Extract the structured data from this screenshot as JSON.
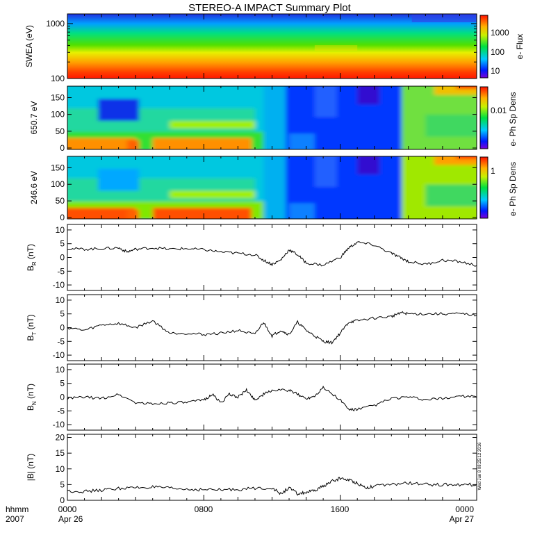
{
  "title": "STEREO-A IMPACT Summary Plot",
  "timestamp": "Wed Jun  8 08:25:12 2016",
  "xaxis": {
    "tick_labels": [
      "0000",
      "0800",
      "1600",
      "0000"
    ],
    "date_labels": [
      "Apr 26",
      "",
      "",
      "Apr 27"
    ],
    "corner_top": "hhmm",
    "corner_bottom": "2007"
  },
  "chart_data": [
    {
      "type": "heatmap",
      "ylabel": "SWEA (eV)",
      "ylim": [
        100,
        1500
      ],
      "yscale": "log",
      "ytick_labels": [
        "1000",
        "100"
      ],
      "colorbar_label": "e- Flux",
      "colorbar_ticks": [
        "1000",
        "100",
        "10"
      ],
      "xlim_hours": [
        0,
        24
      ]
    },
    {
      "type": "heatmap",
      "ylabel": "650.7 eV",
      "ylim": [
        0,
        180
      ],
      "ytick_labels": [
        "0",
        "50",
        "100",
        "150"
      ],
      "colorbar_label": "e- Ph Sp Dens",
      "colorbar_ticks": [
        "0.01"
      ]
    },
    {
      "type": "heatmap",
      "ylabel": "246.6 eV",
      "ylim": [
        0,
        180
      ],
      "ytick_labels": [
        "0",
        "50",
        "100",
        "150"
      ],
      "colorbar_label": "e- Ph Sp Dens",
      "colorbar_ticks": [
        "1"
      ]
    },
    {
      "type": "line",
      "ylabel_main": "B",
      "ylabel_sub": "R",
      "ylabel_unit": " (nT)",
      "ylim": [
        -12,
        12
      ],
      "ytick_labels": [
        "-10",
        "-5",
        "0",
        "5",
        "10"
      ],
      "x_hours": [
        0,
        1,
        2,
        3,
        3.5,
        4,
        5,
        6,
        7,
        8,
        9,
        10,
        11,
        11.5,
        12,
        12.5,
        13,
        13.5,
        14,
        15,
        16,
        16.5,
        17,
        18,
        19,
        19.5,
        20,
        21,
        22,
        23,
        24
      ],
      "values": [
        3.2,
        3,
        3.2,
        3.5,
        2,
        3,
        3.5,
        3,
        3.2,
        2.8,
        2,
        1.5,
        1,
        -1,
        -2.5,
        -1,
        2.8,
        1,
        -2,
        -2.8,
        0,
        3.5,
        5.5,
        4.5,
        1.5,
        0,
        -1.5,
        -2.5,
        -1,
        -1.5,
        -3
      ]
    },
    {
      "type": "line",
      "ylabel_main": "B",
      "ylabel_sub": "T",
      "ylabel_unit": " (nT)",
      "ylim": [
        -12,
        12
      ],
      "ytick_labels": [
        "-10",
        "-5",
        "0",
        "5",
        "10"
      ],
      "x_hours": [
        0,
        1,
        2,
        3,
        4,
        5,
        6,
        7,
        8,
        9,
        10,
        11,
        11.5,
        12,
        12.5,
        13,
        13.5,
        14,
        14.5,
        15,
        15.5,
        16,
        16.5,
        17,
        18,
        19,
        19.5,
        20,
        21,
        22,
        23,
        24
      ],
      "values": [
        0,
        -1,
        1,
        1.5,
        0,
        2.5,
        -2,
        -2,
        -2.5,
        -2,
        -1,
        -2.5,
        2,
        -3,
        -1,
        -2.5,
        2,
        -1,
        -3,
        -5,
        -5.5,
        -2,
        2,
        2.5,
        3.5,
        4,
        5.5,
        5,
        5,
        5,
        5,
        4.5
      ]
    },
    {
      "type": "line",
      "ylabel_main": "B",
      "ylabel_sub": "N",
      "ylabel_unit": " (nT)",
      "ylim": [
        -12,
        12
      ],
      "ytick_labels": [
        "-10",
        "-5",
        "0",
        "5",
        "10"
      ],
      "x_hours": [
        0,
        1,
        2,
        3,
        4,
        5,
        6,
        7,
        8,
        8.5,
        9,
        9.5,
        10,
        10.5,
        11,
        11.5,
        12,
        13,
        13.5,
        14,
        14.5,
        15,
        16,
        16.5,
        17,
        18,
        19,
        20,
        21,
        22,
        23,
        24
      ],
      "values": [
        -0.5,
        0,
        -0.5,
        1,
        -2,
        -2.5,
        -2,
        -2,
        -1,
        1,
        -2,
        1,
        0,
        2.5,
        -1,
        1,
        2.5,
        2.5,
        1,
        -0.5,
        0.5,
        3.5,
        -1,
        -4.5,
        -4.5,
        -3,
        -0.5,
        0,
        -1,
        -0.5,
        0.5,
        0
      ]
    },
    {
      "type": "line",
      "ylabel_main": "|B|",
      "ylabel_sub": "",
      "ylabel_unit": " (nT)",
      "ylim": [
        0,
        21
      ],
      "ytick_labels": [
        "0",
        "5",
        "10",
        "15",
        "20"
      ],
      "x_hours": [
        0,
        1,
        2,
        3,
        4,
        5,
        6,
        7,
        8,
        9,
        10,
        11,
        12,
        12.5,
        13,
        13.5,
        14,
        14.5,
        15,
        15.5,
        16,
        16.5,
        17,
        17.5,
        18,
        19,
        20,
        21,
        22,
        23,
        24
      ],
      "values": [
        3,
        2.8,
        3.2,
        3.8,
        4,
        4.2,
        3.8,
        3.5,
        3.4,
        3.3,
        3.5,
        3.8,
        4,
        2,
        4,
        2,
        2.5,
        3,
        4.5,
        6,
        7,
        6.5,
        5.5,
        4,
        4.5,
        5,
        5.5,
        5,
        5,
        5,
        5
      ]
    }
  ]
}
